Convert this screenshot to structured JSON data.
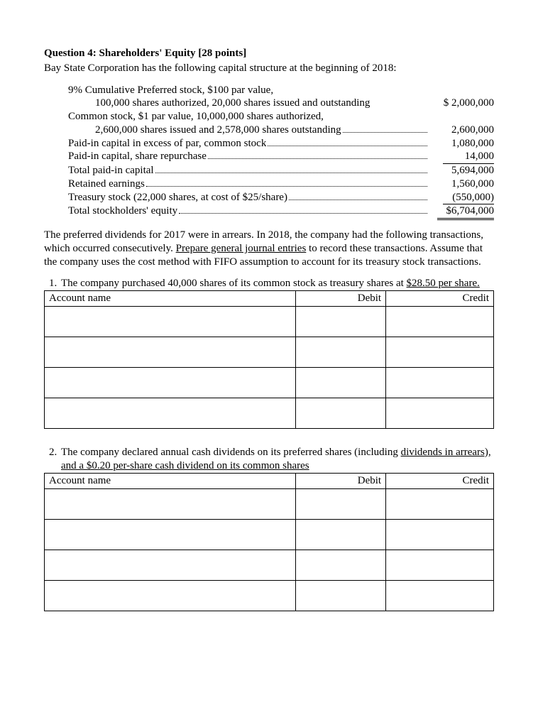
{
  "heading": {
    "prefix": "Question 4: Shareholders' Equity [28 points]",
    "intro": "Bay State Corporation has the following capital structure at the beginning of 2018:"
  },
  "capital": {
    "pref_line1": "9% Cumulative Preferred stock, $100 par value,",
    "pref_line2_label": "100,000 shares authorized, 20,000 shares issued and outstanding",
    "pref_line2_amt": "$ 2,000,000",
    "common_line1": "Common stock, $1 par value, 10,000,000 shares authorized,",
    "common_line2_label": "2,600,000 shares issued and 2,578,000 shares outstanding",
    "common_line2_amt": "2,600,000",
    "apic_common_label": "Paid-in capital in excess of par, common stock",
    "apic_common_amt": "1,080,000",
    "apic_repo_label": "Paid-in capital, share repurchase",
    "apic_repo_amt": "14,000",
    "total_pic_label": "Total paid-in capital",
    "total_pic_amt": "5,694,000",
    "re_label": "Retained earnings",
    "re_amt": "1,560,000",
    "ts_label": "Treasury stock (22,000 shares, at cost of $25/share)",
    "ts_amt": "(550,000)",
    "total_se_label": "Total stockholders' equity",
    "total_se_amt": "$6,704,000"
  },
  "mid_para": {
    "t1": "The preferred dividends for 2017 were in arrears.  In 2018, the company had the following transactions, which occurred consecutively.  ",
    "u": "Prepare general journal entries",
    "t2": " to record these transactions.  Assume that the company uses the cost method with FIFO assumption to account for its treasury stock transactions."
  },
  "txn1": {
    "l1": "The company purchased 40,000 shares of its common stock as treasury shares at ",
    "u": "$28.50 per share."
  },
  "txn2": {
    "l1": "The company declared annual cash dividends on its preferred shares (including ",
    "u": "dividends in arrears), and a $0.20 per-share cash dividend on its common shares"
  },
  "table_headers": {
    "acct": "Account name",
    "debit": "Debit",
    "credit": "Credit"
  }
}
